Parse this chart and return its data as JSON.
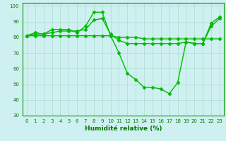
{
  "xlabel": "Humidité relative (%)",
  "ylabel": "",
  "background_color": "#cff0f0",
  "grid_color": "#aaddcc",
  "line_color": "#00bb00",
  "xlim": [
    -0.5,
    23.5
  ],
  "ylim": [
    30,
    102
  ],
  "yticks": [
    30,
    40,
    50,
    60,
    70,
    80,
    90,
    100
  ],
  "xticks": [
    0,
    1,
    2,
    3,
    4,
    5,
    6,
    7,
    8,
    9,
    10,
    11,
    12,
    13,
    14,
    15,
    16,
    17,
    18,
    19,
    20,
    21,
    22,
    23
  ],
  "line1": [
    81,
    83,
    82,
    85,
    85,
    85,
    83,
    87,
    96,
    96,
    81,
    70,
    57,
    53,
    48,
    48,
    47,
    44,
    51,
    77,
    76,
    76,
    89,
    93
  ],
  "line2": [
    81,
    82,
    82,
    83,
    84,
    84,
    84,
    85,
    91,
    92,
    82,
    78,
    76,
    76,
    76,
    76,
    76,
    76,
    76,
    77,
    76,
    76,
    87,
    92
  ],
  "line3": [
    81,
    81,
    81,
    81,
    81,
    81,
    81,
    81,
    81,
    81,
    81,
    80,
    80,
    80,
    79,
    79,
    79,
    79,
    79,
    79,
    79,
    79,
    79,
    79
  ],
  "marker": "D",
  "markersize": 2.5,
  "linewidth": 1.0,
  "tick_fontsize": 5.0,
  "xlabel_fontsize": 6.5
}
